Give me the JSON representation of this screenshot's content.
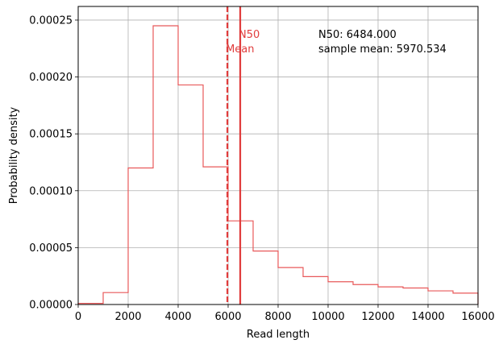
{
  "chart_data": {
    "type": "histogram",
    "xlabel": "Read length",
    "ylabel": "Probability density",
    "xlim": [
      0,
      16000
    ],
    "ylim": [
      0,
      0.000262
    ],
    "grid": true,
    "x_ticks": [
      "0",
      "2000",
      "4000",
      "6000",
      "8000",
      "10000",
      "12000",
      "14000",
      "16000"
    ],
    "y_ticks": [
      "0.00000",
      "0.00005",
      "0.00010",
      "0.00015",
      "0.00020",
      "0.00025"
    ],
    "bin_edges": [
      0,
      1000,
      2000,
      3000,
      4000,
      5000,
      6000,
      7000,
      8000,
      9000,
      10000,
      11000,
      12000,
      13000,
      14000,
      15000,
      16000
    ],
    "densities": [
      1e-06,
      1.05e-05,
      0.00012,
      0.000245,
      0.000193,
      0.000121,
      7.35e-05,
      4.7e-05,
      3.25e-05,
      2.45e-05,
      2e-05,
      1.75e-05,
      1.55e-05,
      1.45e-05,
      1.2e-05,
      1e-05
    ],
    "histogram_color": "#e8595a",
    "vlines": [
      {
        "label": "N50",
        "x": 6484.0,
        "style": "solid",
        "color": "#e03c3c"
      },
      {
        "label": "Mean",
        "x": 5970.534,
        "style": "dashed",
        "color": "#e03c3c"
      }
    ],
    "annotations": [
      "N50: 6484.000",
      "sample mean: 5970.534"
    ]
  }
}
